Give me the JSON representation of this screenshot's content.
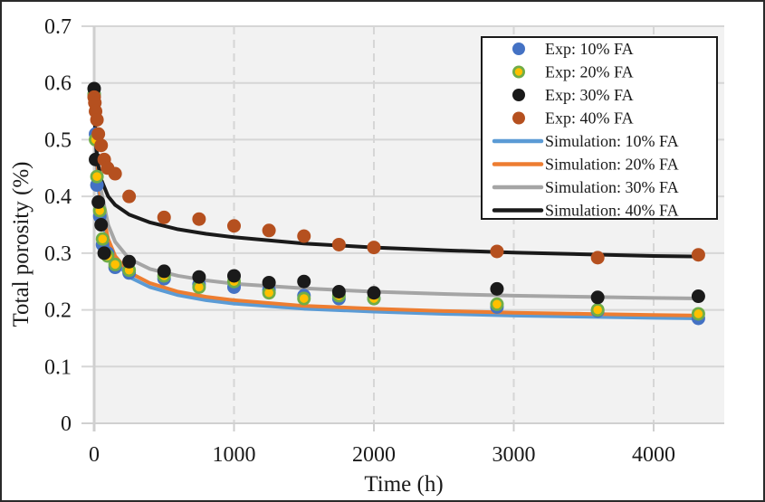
{
  "chart_data": {
    "type": "scatter",
    "title": "",
    "xlabel": "Time (h)",
    "ylabel": "Total porosity (%)",
    "xlim": [
      0,
      4505
    ],
    "ylim": [
      0,
      0.7
    ],
    "xticks": [
      0,
      1000,
      2000,
      3000,
      4000
    ],
    "yticks": [
      0,
      0.1,
      0.2,
      0.3,
      0.4,
      0.5,
      0.6,
      0.7
    ],
    "xtick_labels": [
      "0",
      "1000",
      "2000",
      "3000",
      "4000"
    ],
    "ytick_labels": [
      "0",
      "0.1",
      "0.2",
      "0.3",
      "0.4",
      "0.5",
      "0.6",
      "0.7"
    ],
    "grid": true,
    "legend_position": "top-right",
    "series": [
      {
        "name": "Exp: 10% FA",
        "kind": "marker",
        "color": "#4472c4",
        "edge": "#4472c4",
        "x": [
          0,
          10,
          20,
          40,
          60,
          96,
          150,
          250,
          500,
          750,
          1000,
          1250,
          1500,
          1750,
          2000,
          2880,
          3600,
          4320
        ],
        "y": [
          0.58,
          0.51,
          0.42,
          0.365,
          0.315,
          0.3,
          0.275,
          0.265,
          0.255,
          0.245,
          0.24,
          0.235,
          0.225,
          0.22,
          0.22,
          0.205,
          0.198,
          0.185
        ]
      },
      {
        "name": "Exp: 20% FA",
        "kind": "marker",
        "color": "#ffc000",
        "edge": "#70ad47",
        "x": [
          0,
          10,
          20,
          40,
          60,
          96,
          150,
          250,
          500,
          750,
          1000,
          1250,
          1500,
          1750,
          2000,
          2880,
          3600,
          4320
        ],
        "y": [
          0.58,
          0.5,
          0.435,
          0.375,
          0.325,
          0.295,
          0.28,
          0.27,
          0.26,
          0.24,
          0.25,
          0.23,
          0.22,
          0.225,
          0.22,
          0.21,
          0.2,
          0.193
        ]
      },
      {
        "name": "Exp: 30% FA",
        "kind": "marker",
        "color": "#1a1a1a",
        "edge": "#1a1a1a",
        "x": [
          0,
          10,
          30,
          50,
          72,
          250,
          500,
          750,
          1000,
          1250,
          1500,
          1750,
          2000,
          2880,
          3600,
          4320
        ],
        "y": [
          0.59,
          0.465,
          0.39,
          0.35,
          0.3,
          0.285,
          0.268,
          0.258,
          0.26,
          0.248,
          0.25,
          0.232,
          0.23,
          0.237,
          0.222,
          0.224
        ]
      },
      {
        "name": "Exp: 40% FA",
        "kind": "marker",
        "color": "#b5501f",
        "edge": "#b5501f",
        "x": [
          0,
          5,
          10,
          20,
          30,
          50,
          72,
          96,
          150,
          250,
          500,
          750,
          1000,
          1250,
          1500,
          1750,
          2000,
          2880,
          3600,
          4320
        ],
        "y": [
          0.575,
          0.565,
          0.55,
          0.535,
          0.51,
          0.49,
          0.465,
          0.45,
          0.44,
          0.4,
          0.363,
          0.36,
          0.348,
          0.34,
          0.33,
          0.315,
          0.31,
          0.303,
          0.292,
          0.297
        ]
      },
      {
        "name": "Simulation: 10% FA",
        "kind": "line",
        "color": "#5b9bd5",
        "x": [
          0,
          10,
          25,
          50,
          100,
          150,
          250,
          400,
          600,
          800,
          1000,
          1500,
          2000,
          2500,
          3000,
          3500,
          4000,
          4320
        ],
        "y": [
          0.59,
          0.5,
          0.43,
          0.37,
          0.315,
          0.285,
          0.258,
          0.24,
          0.226,
          0.217,
          0.211,
          0.202,
          0.197,
          0.193,
          0.19,
          0.188,
          0.186,
          0.185
        ]
      },
      {
        "name": "Simulation: 20% FA",
        "kind": "line",
        "color": "#ed7d31",
        "x": [
          0,
          10,
          25,
          50,
          100,
          150,
          250,
          400,
          600,
          800,
          1000,
          1500,
          2000,
          2500,
          3000,
          3500,
          4000,
          4320
        ],
        "y": [
          0.59,
          0.51,
          0.445,
          0.385,
          0.325,
          0.295,
          0.266,
          0.247,
          0.232,
          0.223,
          0.217,
          0.207,
          0.202,
          0.198,
          0.195,
          0.193,
          0.191,
          0.19
        ]
      },
      {
        "name": "Simulation: 30% FA",
        "kind": "line",
        "color": "#a5a5a5",
        "x": [
          0,
          10,
          25,
          50,
          100,
          150,
          250,
          400,
          600,
          800,
          1000,
          1500,
          2000,
          2500,
          3000,
          3500,
          4000,
          4320
        ],
        "y": [
          0.59,
          0.52,
          0.465,
          0.41,
          0.35,
          0.32,
          0.29,
          0.272,
          0.26,
          0.252,
          0.246,
          0.238,
          0.232,
          0.228,
          0.225,
          0.223,
          0.221,
          0.22
        ]
      },
      {
        "name": "Simulation: 40% FA",
        "kind": "line",
        "color": "#1a1a1a",
        "x": [
          0,
          10,
          25,
          50,
          100,
          150,
          250,
          400,
          600,
          800,
          1000,
          1500,
          2000,
          2500,
          3000,
          3500,
          4000,
          4320
        ],
        "y": [
          0.565,
          0.5,
          0.46,
          0.43,
          0.4,
          0.385,
          0.368,
          0.354,
          0.342,
          0.334,
          0.328,
          0.317,
          0.31,
          0.305,
          0.301,
          0.298,
          0.295,
          0.294
        ]
      }
    ]
  }
}
